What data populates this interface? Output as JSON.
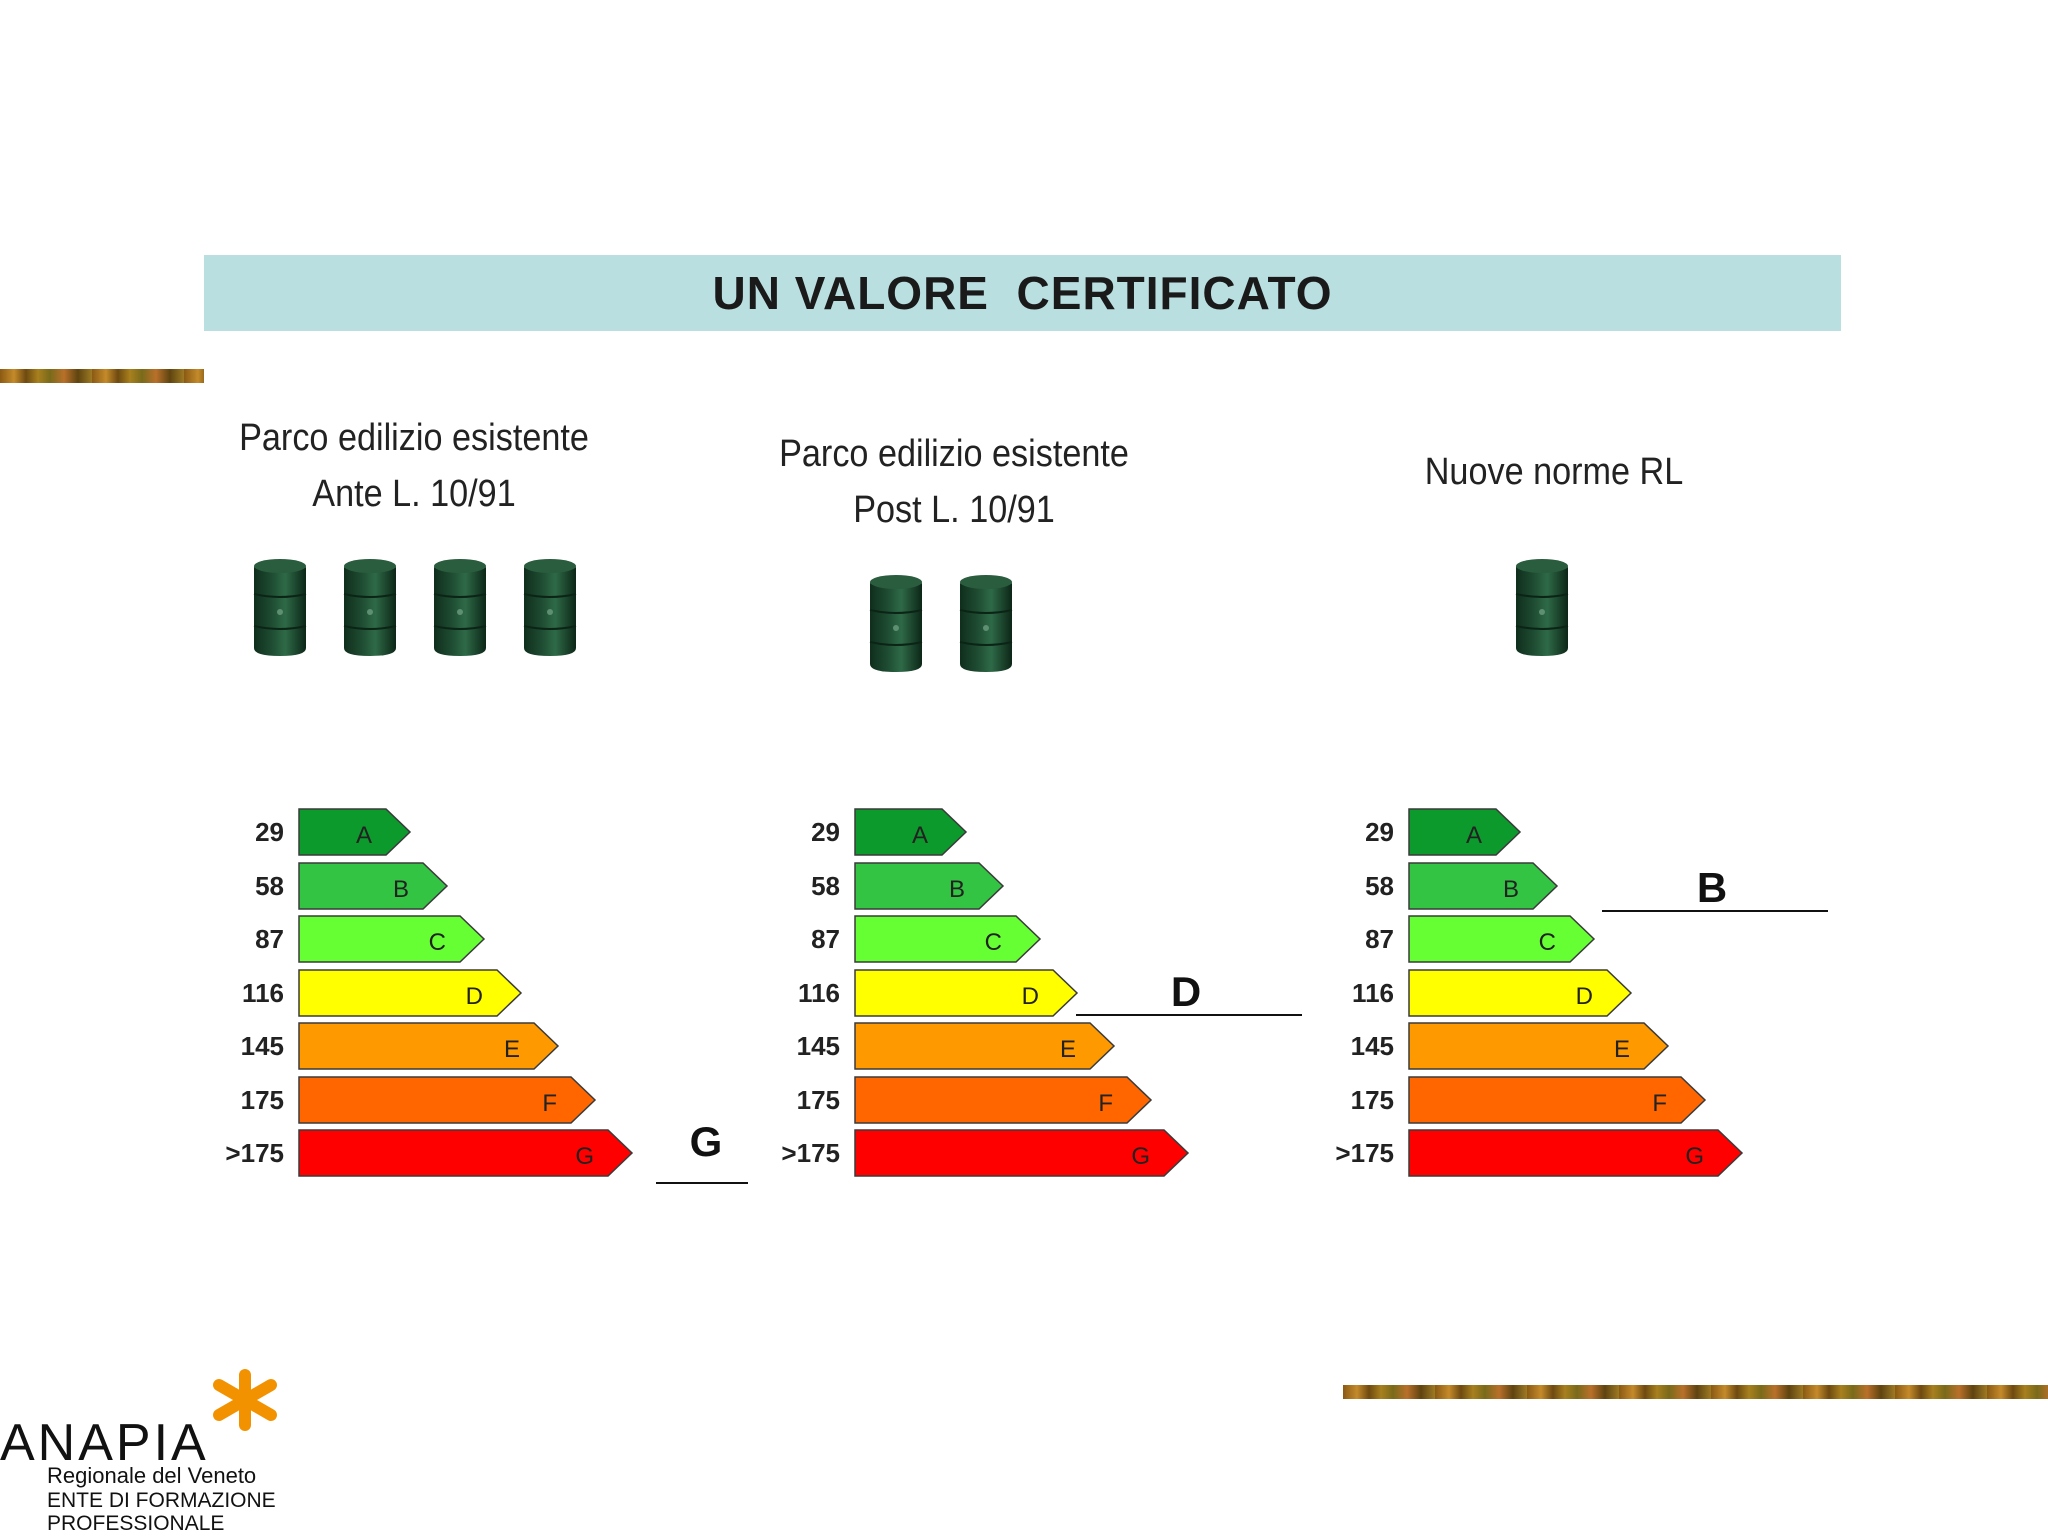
{
  "title": "UN VALORE  CERTIFICATO",
  "colors": {
    "banner": "#b9dfe1",
    "barrel": "#1f4d33",
    "class_A": "#0c9a2c",
    "class_B": "#33c443",
    "class_C": "#66ff33",
    "class_D": "#ffff00",
    "class_E": "#ff9900",
    "class_F": "#ff6600",
    "class_G": "#ff0000",
    "logo_accent": "#f39200"
  },
  "icons": {
    "barrel": "oil-barrel-icon",
    "logo": "asterisk-star-icon"
  },
  "columns": [
    {
      "title_line1": "Parco edilizio esistente",
      "title_line2": "Ante L. 10/91",
      "barrel_count": 4,
      "result": "G"
    },
    {
      "title_line1": "Parco edilizio esistente",
      "title_line2": "Post L. 10/91",
      "barrel_count": 2,
      "result": "D"
    },
    {
      "title_line1": "Nuove norme RL",
      "title_line2": "",
      "barrel_count": 1,
      "result": "B"
    }
  ],
  "rating_scale": [
    {
      "value": "29",
      "label": "A"
    },
    {
      "value": "58",
      "label": "B"
    },
    {
      "value": "87",
      "label": "C"
    },
    {
      "value": "116",
      "label": "D"
    },
    {
      "value": "145",
      "label": "E"
    },
    {
      "value": "175",
      "label": "F"
    },
    {
      "value": ">175",
      "label": "G"
    }
  ],
  "logo": {
    "name": "ANAPIA",
    "subtitle": "Regionale del Veneto",
    "line2": "ENTE DI FORMAZIONE",
    "line3": "PROFESSIONALE"
  }
}
